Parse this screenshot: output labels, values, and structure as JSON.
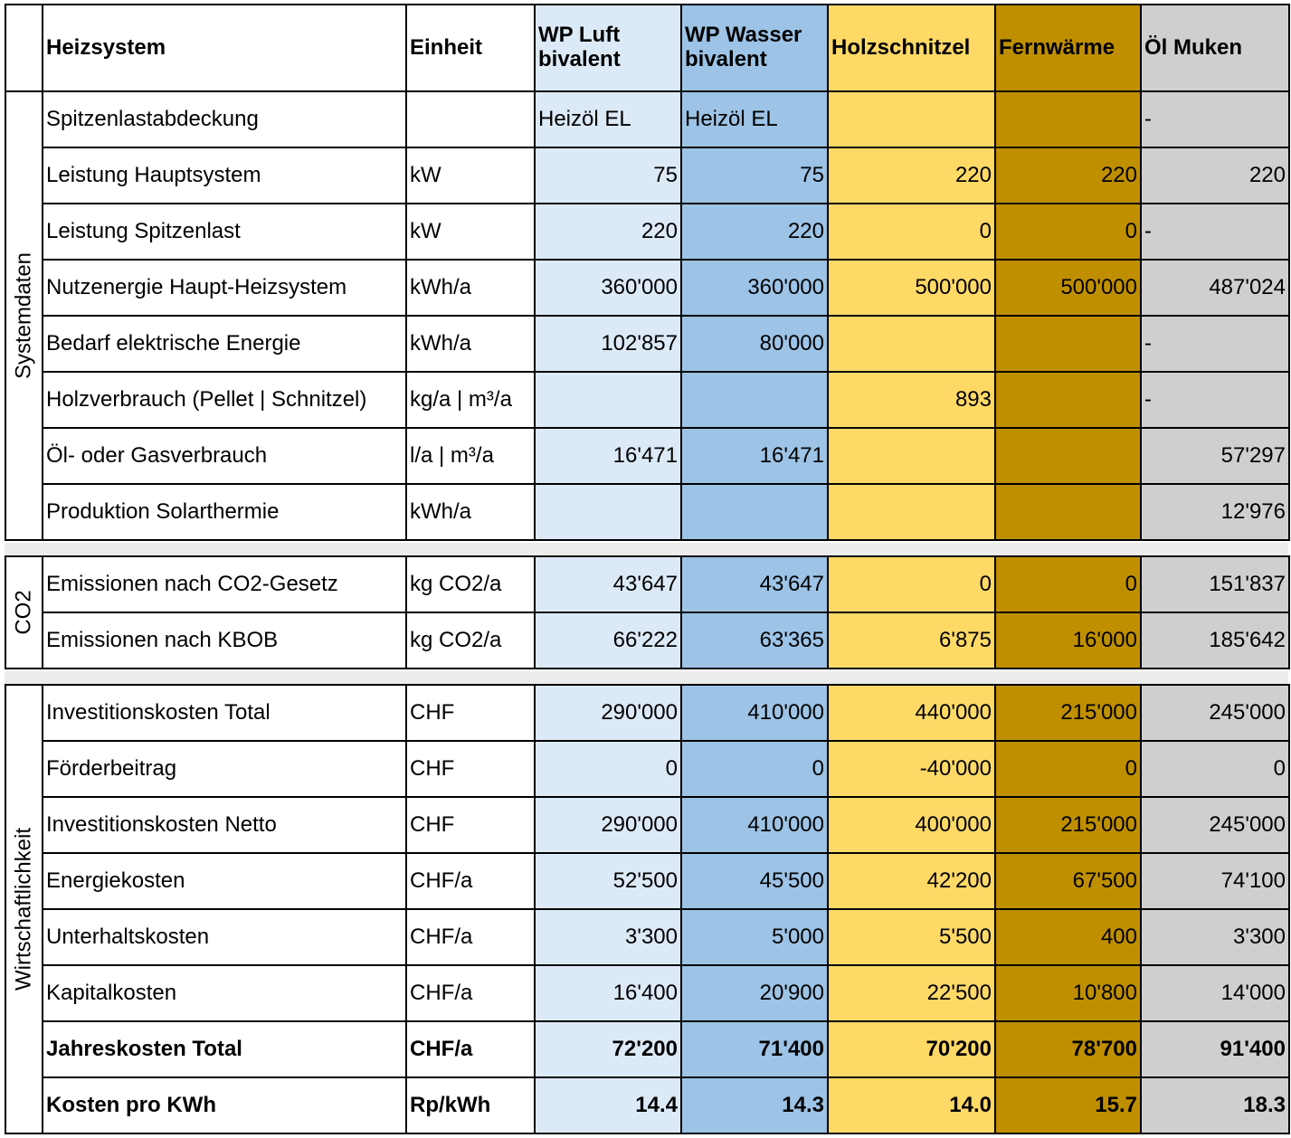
{
  "columns": {
    "heizsystem": "Heizsystem",
    "einheit": "Einheit",
    "wp_luft": "WP Luft bivalent",
    "wp_wasser": "WP Wasser bivalent",
    "holzschnitzel": "Holzschnitzel",
    "fernwaerme": "Fernwärme",
    "oel_muken": "Öl Muken"
  },
  "column_colors": {
    "wp_luft": "#dce9f6",
    "wp_wasser": "#9dc3e6",
    "holzschnitzel": "#ffd966",
    "fernwaerme": "#bf8f00",
    "oel_muken": "#d0cece"
  },
  "groups": {
    "systemdaten": {
      "label": "Systemdaten",
      "rows": [
        {
          "label": "Spitzenlastabdeckung",
          "unit": "",
          "values": [
            "Heizöl EL",
            "Heizöl EL",
            "",
            "",
            "-"
          ]
        },
        {
          "label": "Leistung Hauptsystem",
          "unit": "kW",
          "values": [
            "75",
            "75",
            "220",
            "220",
            "220"
          ]
        },
        {
          "label": "Leistung Spitzenlast",
          "unit": "kW",
          "values": [
            "220",
            "220",
            "0",
            "0",
            "-"
          ]
        },
        {
          "label": "Nutzenergie Haupt-Heizsystem",
          "unit": "kWh/a",
          "values": [
            "360'000",
            "360'000",
            "500'000",
            "500'000",
            "487'024"
          ]
        },
        {
          "label": "Bedarf elektrische Energie",
          "unit": "kWh/a",
          "values": [
            "102'857",
            "80'000",
            "",
            "",
            "-"
          ]
        },
        {
          "label": "Holzverbrauch (Pellet | Schnitzel)",
          "unit": "kg/a | m³/a",
          "values": [
            "",
            "",
            "893",
            "",
            "-"
          ]
        },
        {
          "label": "Öl- oder Gasverbrauch",
          "unit": "l/a | m³/a",
          "values": [
            "16'471",
            "16'471",
            "",
            "",
            "57'297"
          ]
        },
        {
          "label": "Produktion Solarthermie",
          "unit": "kWh/a",
          "values": [
            "",
            "",
            "",
            "",
            "12'976"
          ]
        }
      ]
    },
    "co2": {
      "label": "CO2",
      "rows": [
        {
          "label": "Emissionen nach CO2-Gesetz",
          "unit": "kg CO2/a",
          "values": [
            "43'647",
            "43'647",
            "0",
            "0",
            "151'837"
          ]
        },
        {
          "label": "Emissionen nach KBOB",
          "unit": "kg CO2/a",
          "values": [
            "66'222",
            "63'365",
            "6'875",
            "16'000",
            "185'642"
          ]
        }
      ]
    },
    "wirtschaftlichkeit": {
      "label": "Wirtschaftlichkeit",
      "rows": [
        {
          "label": "Investitionskosten Total",
          "unit": "CHF",
          "values": [
            "290'000",
            "410'000",
            "440'000",
            "215'000",
            "245'000"
          ]
        },
        {
          "label": "Förderbeitrag",
          "unit": "CHF",
          "values": [
            "0",
            "0",
            "-40'000",
            "0",
            "0"
          ]
        },
        {
          "label": "Investitionskosten Netto",
          "unit": "CHF",
          "values": [
            "290'000",
            "410'000",
            "400'000",
            "215'000",
            "245'000"
          ]
        },
        {
          "label": "Energiekosten",
          "unit": "CHF/a",
          "values": [
            "52'500",
            "45'500",
            "42'200",
            "67'500",
            "74'100"
          ]
        },
        {
          "label": "Unterhaltskosten",
          "unit": "CHF/a",
          "values": [
            "3'300",
            "5'000",
            "5'500",
            "400",
            "3'300"
          ]
        },
        {
          "label": "Kapitalkosten",
          "unit": "CHF/a",
          "values": [
            "16'400",
            "20'900",
            "22'500",
            "10'800",
            "14'000"
          ]
        },
        {
          "label": "Jahreskosten Total",
          "unit": "CHF/a",
          "values": [
            "72'200",
            "71'400",
            "70'200",
            "78'700",
            "91'400"
          ]
        },
        {
          "label": "Kosten pro KWh",
          "unit": "Rp/kWh",
          "values": [
            "14.4",
            "14.3",
            "14.0",
            "15.7",
            "18.3"
          ]
        }
      ]
    }
  }
}
